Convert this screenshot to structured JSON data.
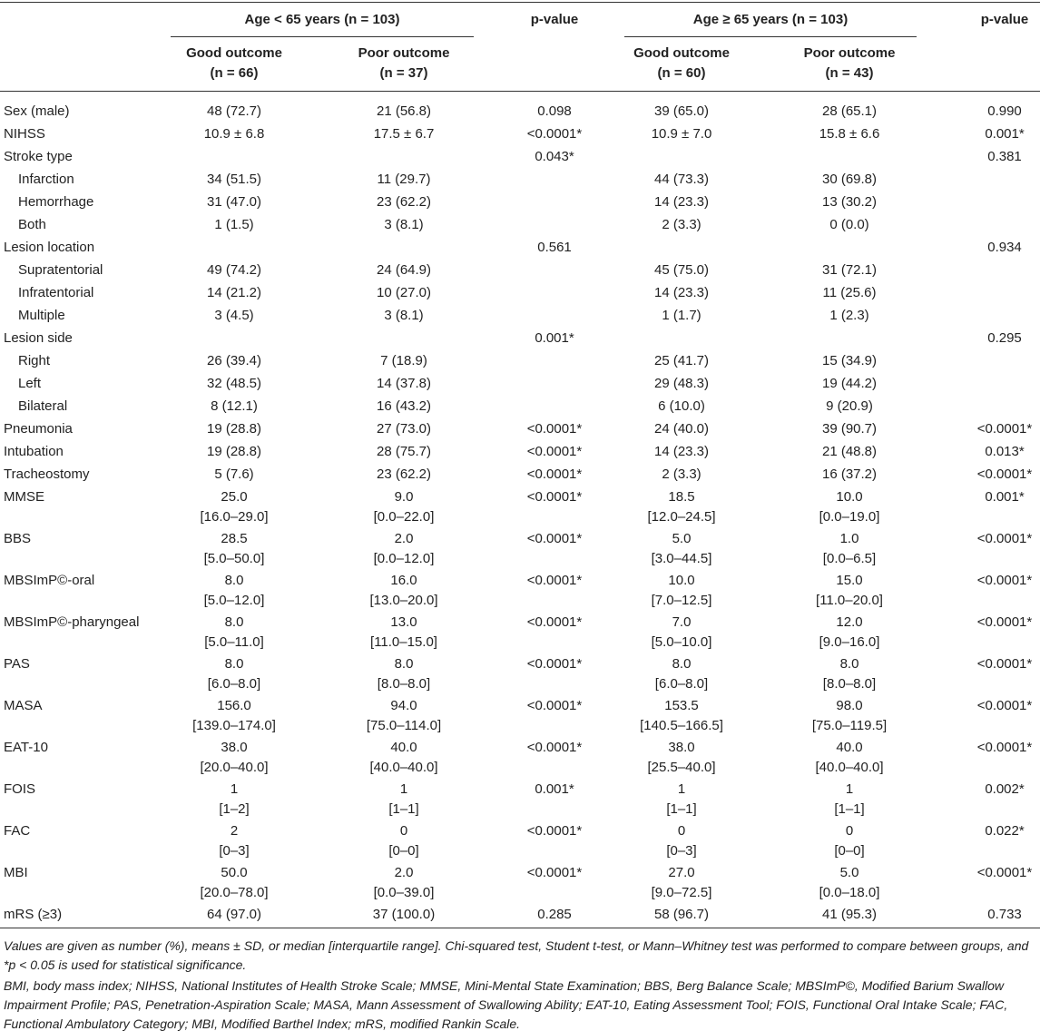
{
  "header": {
    "groups": [
      {
        "title": "Age < 65 years (n = 103)",
        "columns": [
          {
            "title": "Good outcome",
            "n": "(n = 66)"
          },
          {
            "title": "Poor outcome",
            "n": "(n = 37)"
          }
        ],
        "p_value": "p-value"
      },
      {
        "title": "Age ≥ 65 years (n = 103)",
        "columns": [
          {
            "title": "Good outcome",
            "n": "(n = 60)"
          },
          {
            "title": "Poor outcome",
            "n": "(n = 43)"
          }
        ],
        "p_value": "p-value"
      }
    ]
  },
  "table": {
    "rows": [
      {
        "label": "Sex (male)",
        "values": [
          "48 (72.7)",
          "21 (56.8)",
          "0.098",
          "39 (65.0)",
          "28 (65.1)",
          "0.990"
        ]
      },
      {
        "label": "NIHSS",
        "values": [
          "10.9 ± 6.8",
          "17.5 ± 6.7",
          "<0.0001*",
          "10.9 ± 7.0",
          "15.8 ± 6.6",
          "0.001*"
        ]
      },
      {
        "label": "Stroke type",
        "values": [
          null,
          null,
          "0.043*",
          null,
          null,
          "0.381"
        ],
        "items": [
          {
            "label": "Infarction",
            "values": [
              "34 (51.5)",
              "11 (29.7)",
              null,
              "44 (73.3)",
              "30 (69.8)",
              null
            ]
          },
          {
            "label": "Hemorrhage",
            "values": [
              "31 (47.0)",
              "23 (62.2)",
              null,
              "14 (23.3)",
              "13 (30.2)",
              null
            ]
          },
          {
            "label": "Both",
            "values": [
              "1 (1.5)",
              "3 (8.1)",
              null,
              "2 (3.3)",
              "0 (0.0)",
              null
            ]
          }
        ]
      },
      {
        "label": "Lesion location",
        "values": [
          null,
          null,
          "0.561",
          null,
          null,
          "0.934"
        ],
        "items": [
          {
            "label": "Supratentorial",
            "values": [
              "49 (74.2)",
              "24 (64.9)",
              null,
              "45 (75.0)",
              "31 (72.1)",
              null
            ]
          },
          {
            "label": "Infratentorial",
            "values": [
              "14 (21.2)",
              "10 (27.0)",
              null,
              "14 (23.3)",
              "11 (25.6)",
              null
            ]
          },
          {
            "label": "Multiple",
            "values": [
              "3 (4.5)",
              "3 (8.1)",
              null,
              "1 (1.7)",
              "1 (2.3)",
              null
            ]
          }
        ]
      },
      {
        "label": "Lesion side",
        "values": [
          null,
          null,
          "0.001*",
          null,
          null,
          "0.295"
        ],
        "items": [
          {
            "label": "Right",
            "values": [
              "26 (39.4)",
              "7 (18.9)",
              null,
              "25 (41.7)",
              "15 (34.9)",
              null
            ]
          },
          {
            "label": "Left",
            "values": [
              "32 (48.5)",
              "14 (37.8)",
              null,
              "29 (48.3)",
              "19 (44.2)",
              null
            ]
          },
          {
            "label": "Bilateral",
            "values": [
              "8 (12.1)",
              "16 (43.2)",
              null,
              "6 (10.0)",
              "9 (20.9)",
              null
            ]
          }
        ]
      },
      {
        "label": "Pneumonia",
        "values": [
          "19 (28.8)",
          "27 (73.0)",
          "<0.0001*",
          "24 (40.0)",
          "39 (90.7)",
          "<0.0001*"
        ]
      },
      {
        "label": "Intubation",
        "values": [
          "19 (28.8)",
          "28 (75.7)",
          "<0.0001*",
          "14 (23.3)",
          "21 (48.8)",
          "0.013*"
        ]
      },
      {
        "label": "Tracheostomy",
        "values": [
          "5 (7.6)",
          "23 (62.2)",
          "<0.0001*",
          "2 (3.3)",
          "16 (37.2)",
          "<0.0001*"
        ]
      },
      {
        "label": "MMSE",
        "values": [
          [
            "25.0",
            "[16.0–29.0]"
          ],
          [
            "9.0",
            "[0.0–22.0]"
          ],
          "<0.0001*",
          [
            "18.5",
            "[12.0–24.5]"
          ],
          [
            "10.0",
            "[0.0–19.0]"
          ],
          "0.001*"
        ]
      },
      {
        "label": "BBS",
        "values": [
          [
            "28.5",
            "[5.0–50.0]"
          ],
          [
            "2.0",
            "[0.0–12.0]"
          ],
          "<0.0001*",
          [
            "5.0",
            "[3.0–44.5]"
          ],
          [
            "1.0",
            "[0.0–6.5]"
          ],
          "<0.0001*"
        ]
      },
      {
        "label": "MBSImP©-oral",
        "values": [
          [
            "8.0",
            "[5.0–12.0]"
          ],
          [
            "16.0",
            "[13.0–20.0]"
          ],
          "<0.0001*",
          [
            "10.0",
            "[7.0–12.5]"
          ],
          [
            "15.0",
            "[11.0–20.0]"
          ],
          "<0.0001*"
        ]
      },
      {
        "label": "MBSImP©-pharyngeal",
        "values": [
          [
            "8.0",
            "[5.0–11.0]"
          ],
          [
            "13.0",
            "[11.0–15.0]"
          ],
          "<0.0001*",
          [
            "7.0",
            "[5.0–10.0]"
          ],
          [
            "12.0",
            "[9.0–16.0]"
          ],
          "<0.0001*"
        ]
      },
      {
        "label": "PAS",
        "values": [
          [
            "8.0",
            "[6.0–8.0]"
          ],
          [
            "8.0",
            "[8.0–8.0]"
          ],
          "<0.0001*",
          [
            "8.0",
            "[6.0–8.0]"
          ],
          [
            "8.0",
            "[8.0–8.0]"
          ],
          "<0.0001*"
        ]
      },
      {
        "label": "MASA",
        "values": [
          [
            "156.0",
            "[139.0–174.0]"
          ],
          [
            "94.0",
            "[75.0–114.0]"
          ],
          "<0.0001*",
          [
            "153.5",
            "[140.5–166.5]"
          ],
          [
            "98.0",
            "[75.0–119.5]"
          ],
          "<0.0001*"
        ]
      },
      {
        "label": "EAT-10",
        "values": [
          [
            "38.0",
            "[20.0–40.0]"
          ],
          [
            "40.0",
            "[40.0–40.0]"
          ],
          "<0.0001*",
          [
            "38.0",
            "[25.5–40.0]"
          ],
          [
            "40.0",
            "[40.0–40.0]"
          ],
          "<0.0001*"
        ]
      },
      {
        "label": "FOIS",
        "values": [
          [
            "1",
            "[1–2]"
          ],
          [
            "1",
            "[1–1]"
          ],
          "0.001*",
          [
            "1",
            "[1–1]"
          ],
          [
            "1",
            "[1–1]"
          ],
          "0.002*"
        ]
      },
      {
        "label": "FAC",
        "values": [
          [
            "2",
            "[0–3]"
          ],
          [
            "0",
            "[0–0]"
          ],
          "<0.0001*",
          [
            "0",
            "[0–3]"
          ],
          [
            "0",
            "[0–0]"
          ],
          "0.022*"
        ]
      },
      {
        "label": "MBI",
        "values": [
          [
            "50.0",
            "[20.0–78.0]"
          ],
          [
            "2.0",
            "[0.0–39.0]"
          ],
          "<0.0001*",
          [
            "27.0",
            "[9.0–72.5]"
          ],
          [
            "5.0",
            "[0.0–18.0]"
          ],
          "<0.0001*"
        ]
      },
      {
        "label": "mRS (≥3)",
        "values": [
          "64 (97.0)",
          "37 (100.0)",
          "0.285",
          "58 (96.7)",
          "41 (95.3)",
          "0.733"
        ]
      }
    ]
  },
  "notes": [
    "Values are given as number (%), means ± SD, or median [interquartile range]. Chi-squared test, Student t-test, or Mann–Whitney test was performed to compare between groups, and *p < 0.05 is used for statistical significance.",
    "BMI, body mass index; NIHSS, National Institutes of Health Stroke Scale; MMSE, Mini-Mental State Examination; BBS, Berg Balance Scale; MBSImP©, Modified Barium Swallow Impairment Profile; PAS, Penetration-Aspiration Scale; MASA, Mann Assessment of Swallowing Ability; EAT-10, Eating Assessment Tool; FOIS, Functional Oral Intake Scale; FAC, Functional Ambulatory Category; MBI, Modified Barthel Index; mRS, modified Rankin Scale."
  ]
}
